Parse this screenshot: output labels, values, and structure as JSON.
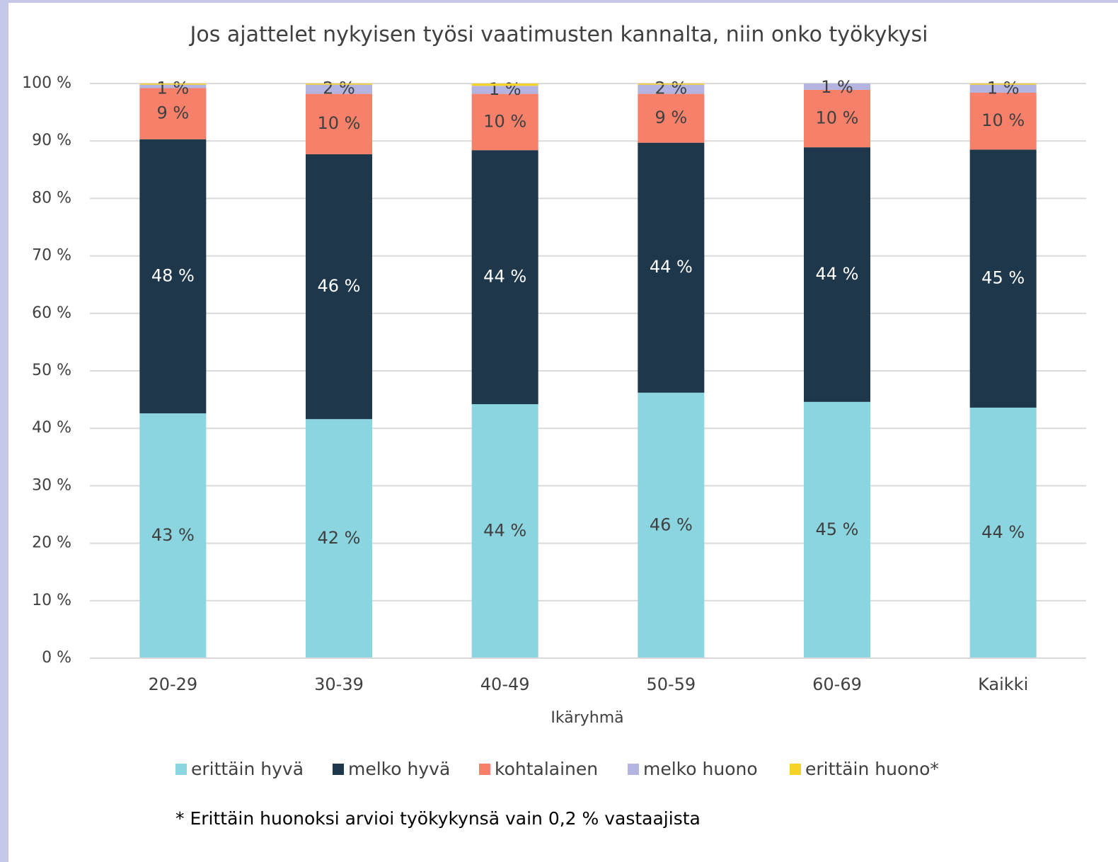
{
  "chart_data": {
    "type": "stacked-bar",
    "title": "Jos ajattelet nykyisen työsi vaatimusten kannalta, niin onko työkykysi",
    "x_label": "Ikäryhmä",
    "note": "* Erittäin huonoksi arvioi työkykynsä vain 0,2 % vastaajista",
    "categories": [
      "20-29",
      "30-39",
      "40-49",
      "50-59",
      "60-69",
      "Kaikki"
    ],
    "series": [
      {
        "name": "erittäin hyvä",
        "color": "#8ad5df",
        "values": [
          42.6,
          41.6,
          44.2,
          46.2,
          44.6,
          43.6
        ],
        "value_labels": [
          "43 %",
          "42 %",
          "44 %",
          "46 %",
          "45 %",
          "44 %"
        ]
      },
      {
        "name": "melko hyvä",
        "color": "#1e374b",
        "values": [
          47.7,
          46.1,
          44.2,
          43.5,
          44.3,
          44.9
        ],
        "value_labels": [
          "48 %",
          "46 %",
          "44 %",
          "44 %",
          "44 %",
          "45 %"
        ]
      },
      {
        "name": "kohtalainen",
        "color": "#f7806a",
        "values": [
          8.9,
          10.5,
          9.8,
          8.5,
          10.0,
          9.9
        ],
        "value_labels": [
          "9 %",
          "10 %",
          "10 %",
          "9 %",
          "10 %",
          "10 %"
        ]
      },
      {
        "name": "melko huono",
        "color": "#b4b4e0",
        "values": [
          0.6,
          1.6,
          1.4,
          1.6,
          1.1,
          1.4
        ],
        "value_labels": [
          "1 %",
          "2 %",
          "1 %",
          "2 %",
          "1 %",
          "1 %"
        ]
      },
      {
        "name": "erittäin huono*",
        "color": "#f5d327",
        "values": [
          0.2,
          0.2,
          0.4,
          0.2,
          0,
          0.2
        ],
        "value_labels": [
          null,
          null,
          null,
          null,
          null,
          null
        ]
      }
    ],
    "ylim": [
      0,
      100
    ],
    "yticks": [
      {
        "value": 0,
        "label": "0 %"
      },
      {
        "value": 10,
        "label": "10 %"
      },
      {
        "value": 20,
        "label": "20 %"
      },
      {
        "value": 30,
        "label": "30 %"
      },
      {
        "value": 40,
        "label": "40 %"
      },
      {
        "value": 50,
        "label": "50 %"
      },
      {
        "value": 60,
        "label": "60 %"
      },
      {
        "value": 70,
        "label": "70 %"
      },
      {
        "value": 80,
        "label": "80 %"
      },
      {
        "value": 90,
        "label": "90 %"
      },
      {
        "value": 100,
        "label": "100 %"
      }
    ],
    "grid": true
  }
}
